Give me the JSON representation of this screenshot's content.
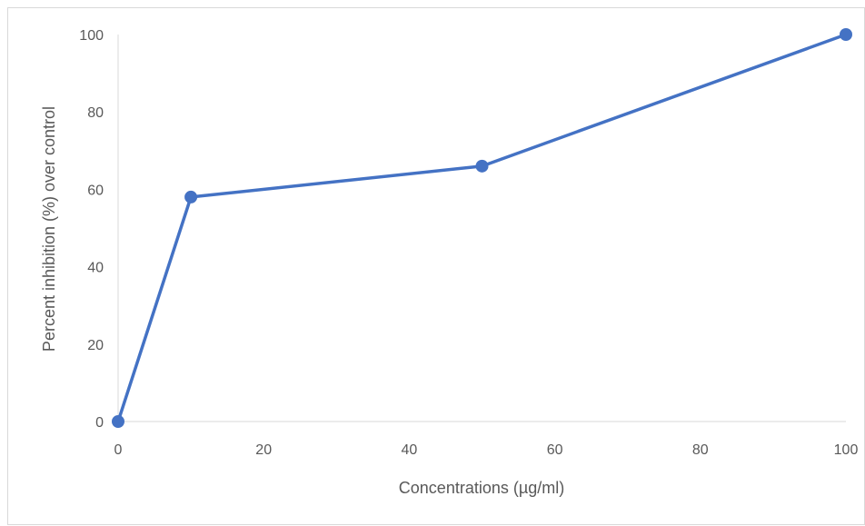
{
  "chart_data": {
    "type": "line",
    "x": [
      0,
      10,
      50,
      100
    ],
    "series": [
      {
        "values": [
          0,
          58,
          66,
          100
        ]
      }
    ],
    "xlabel": "Concentrations (µg/ml)",
    "ylabel": "Percent inhibition (%) over control",
    "xlim": [
      0,
      100
    ],
    "ylim": [
      0,
      100
    ],
    "xticks": [
      "0",
      "20",
      "40",
      "60",
      "80",
      "100"
    ],
    "yticks": [
      "0",
      "20",
      "40",
      "60",
      "80",
      "100"
    ],
    "grid": false,
    "line_color": "#4472C4",
    "marker": "circle"
  }
}
